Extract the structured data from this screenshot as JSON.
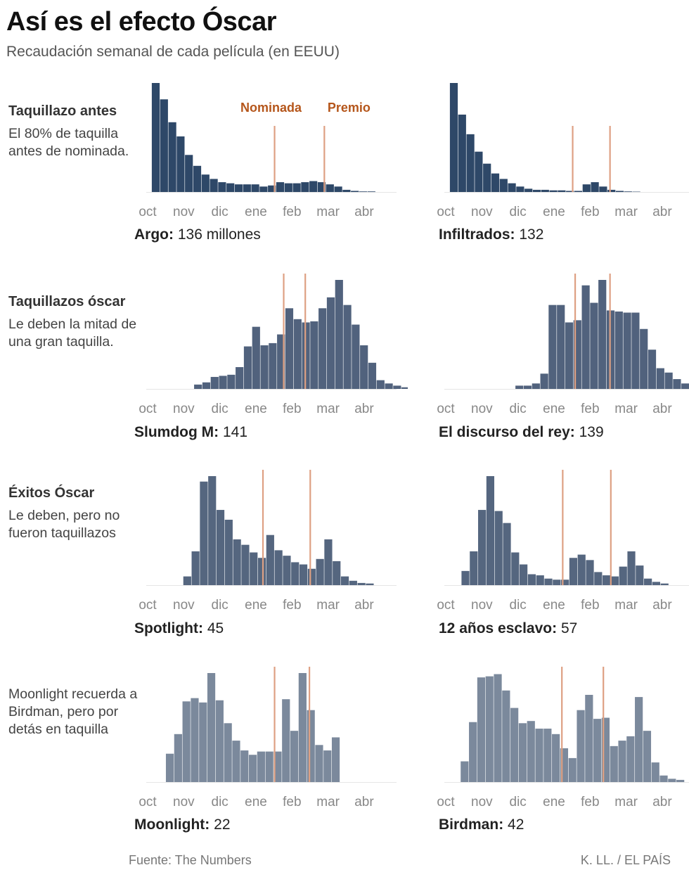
{
  "title": "Así es el efecto Óscar",
  "subtitle": "Recaudación semanal de cada película (en EEUU)",
  "groups": [
    {
      "heading": "Taquillazo antes",
      "text": "El 80% de taquilla antes de nominada."
    },
    {
      "heading": "Taquillazos óscar",
      "text": "Le deben la mitad de una gran taquilla."
    },
    {
      "heading": "Éxitos Óscar",
      "text": "Le deben, pero no fueron taquillazos"
    },
    {
      "heading": "",
      "text": "Moonlight recuerda a Birdman, pero por detás en taquilla"
    }
  ],
  "annotations": {
    "nominated": "Nominada",
    "award": "Premio"
  },
  "footer": {
    "source": "Fuente: The Numbers",
    "credit": "K. LL.  /  EL PAÍS"
  },
  "colors": {
    "row1": "#2e4868",
    "row2": "#51627d",
    "row3": "#55667f",
    "row4": "#7b899c",
    "event_line": "#dea083",
    "annotation_text": "#b5561b"
  },
  "chart_data": [
    {
      "type": "bar",
      "film": "Argo",
      "total_label": "136 millones",
      "x_ticks": [
        "oct",
        "nov",
        "dic",
        "ene",
        "feb",
        "mar",
        "abr"
      ],
      "start_week": 0.5,
      "nominated_week": 15.3,
      "award_week": 21.3,
      "ymax": 100,
      "values": [
        100,
        85,
        64,
        51,
        34,
        24,
        16,
        12,
        9,
        8,
        7,
        7,
        7,
        5,
        6,
        9,
        8,
        8,
        9,
        10,
        9,
        7,
        5,
        2,
        1,
        0.5,
        0.5
      ]
    },
    {
      "type": "bar",
      "film": "Infiltrados",
      "total_label": "132",
      "x_ticks": [
        "oct",
        "nov",
        "dic",
        "ene",
        "feb",
        "mar",
        "abr"
      ],
      "start_week": 0.5,
      "nominated_week": 15.3,
      "award_week": 19.8,
      "ymax": 100,
      "values": [
        100,
        71,
        53,
        37,
        26,
        17,
        12,
        8,
        5,
        3,
        2,
        2,
        1.5,
        1.5,
        1,
        1,
        7,
        9,
        5,
        2,
        1,
        0.5,
        0.3
      ]
    },
    {
      "type": "bar",
      "film": "Slumdog M",
      "total_label": "141",
      "x_ticks": [
        "oct",
        "nov",
        "dic",
        "ene",
        "feb",
        "mar",
        "abr"
      ],
      "start_week": 5.6,
      "nominated_week": 16.4,
      "award_week": 19.0,
      "ymax": 100,
      "values": [
        4,
        6,
        11,
        12,
        13,
        20,
        39,
        57,
        40,
        42,
        50,
        74,
        64,
        61,
        62,
        74,
        84,
        100,
        77,
        59,
        40,
        24,
        8,
        5,
        3,
        1.5
      ]
    },
    {
      "type": "bar",
      "film": "El discurso del rey",
      "total_label": "139",
      "x_ticks": [
        "oct",
        "nov",
        "dic",
        "ene",
        "feb",
        "mar",
        "abr"
      ],
      "start_week": 8.4,
      "nominated_week": 15.6,
      "award_week": 19.8,
      "ymax": 100,
      "values": [
        3,
        3,
        5,
        14,
        77,
        77,
        61,
        63,
        95,
        79,
        100,
        72,
        71,
        70,
        70,
        55,
        36,
        19,
        15,
        9,
        5,
        3
      ]
    },
    {
      "type": "bar",
      "film": "Spotlight",
      "total_label": "45",
      "x_ticks": [
        "oct",
        "nov",
        "dic",
        "ene",
        "feb",
        "mar",
        "abr"
      ],
      "start_week": 4.3,
      "nominated_week": 13.9,
      "award_week": 19.6,
      "ymax": 100,
      "values": [
        8,
        31,
        95,
        100,
        69,
        60,
        42,
        37,
        30,
        25,
        46,
        32,
        27,
        21,
        19,
        15,
        24,
        42,
        22,
        8,
        4,
        2,
        1.5
      ]
    },
    {
      "type": "bar",
      "film": "12 años esclavo",
      "total_label": "57",
      "x_ticks": [
        "oct",
        "nov",
        "dic",
        "ene",
        "feb",
        "mar",
        "abr"
      ],
      "start_week": 1.9,
      "nominated_week": 14.1,
      "award_week": 19.9,
      "ymax": 100,
      "values": [
        13,
        31,
        69,
        100,
        68,
        57,
        30,
        19,
        10,
        9,
        6,
        5,
        5,
        25,
        28,
        23,
        12,
        9,
        8,
        17,
        31,
        18,
        6,
        3,
        1.5
      ]
    },
    {
      "type": "bar",
      "film": "Moonlight",
      "total_label": "22",
      "x_ticks": [
        "oct",
        "nov",
        "dic",
        "ene",
        "feb",
        "mar",
        "abr"
      ],
      "start_week": 2.2,
      "nominated_week": 15.3,
      "award_week": 19.5,
      "ymax": 100,
      "values": [
        26,
        44,
        74,
        77,
        73,
        100,
        75,
        54,
        38,
        29,
        25,
        28,
        28,
        28,
        76,
        47,
        100,
        66,
        34,
        29,
        41
      ]
    },
    {
      "type": "bar",
      "film": "Birdman",
      "total_label": "42",
      "x_ticks": [
        "oct",
        "nov",
        "dic",
        "ene",
        "feb",
        "mar",
        "abr"
      ],
      "start_week": 1.8,
      "nominated_week": 14.0,
      "award_week": 19.0,
      "ymax": 100,
      "values": [
        19,
        55,
        96,
        97,
        99,
        84,
        68,
        54,
        56,
        49,
        49,
        44,
        31,
        22,
        66,
        80,
        58,
        59,
        33,
        38,
        42,
        78,
        47,
        18,
        6,
        3,
        2
      ]
    }
  ]
}
